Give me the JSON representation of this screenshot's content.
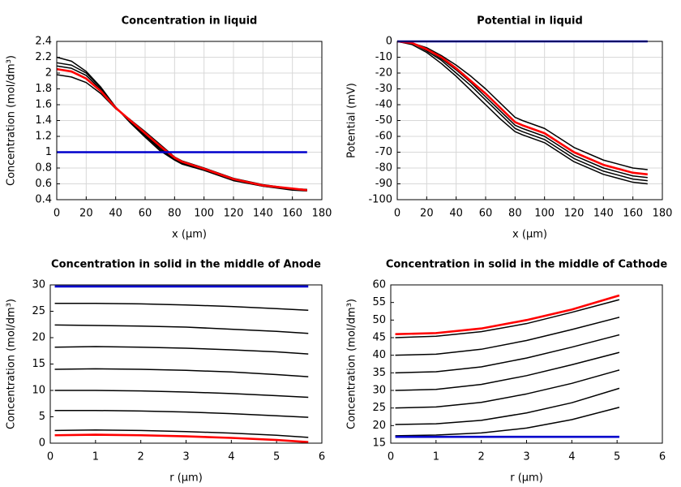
{
  "chart_data": [
    {
      "type": "line",
      "title": "Concentration in liquid",
      "xlabel": "x (μm)",
      "ylabel": "Concentration (mol/dm³)",
      "x": [
        0,
        10,
        20,
        30,
        40,
        50,
        60,
        70,
        80,
        85,
        100,
        120,
        140,
        160,
        170
      ],
      "xlim": [
        0,
        180
      ],
      "xticks": [
        0,
        20,
        40,
        60,
        80,
        100,
        120,
        140,
        160,
        180
      ],
      "ylim": [
        0.4,
        2.4
      ],
      "yticks": [
        0.4,
        0.6,
        0.8,
        1,
        1.2,
        1.4,
        1.6,
        1.8,
        2,
        2.2,
        2.4
      ],
      "grid": true,
      "series": [
        {
          "color": "#000000",
          "values": [
            2.2,
            2.15,
            2.02,
            1.82,
            1.57,
            1.37,
            1.19,
            1.02,
            0.9,
            0.85,
            0.77,
            0.64,
            0.57,
            0.52,
            0.51
          ]
        },
        {
          "color": "#000000",
          "values": [
            2.13,
            2.1,
            2.0,
            1.81,
            1.57,
            1.38,
            1.21,
            1.04,
            0.91,
            0.86,
            0.78,
            0.65,
            0.57,
            0.53,
            0.52
          ]
        },
        {
          "color": "#000000",
          "values": [
            2.09,
            2.06,
            1.97,
            1.79,
            1.56,
            1.39,
            1.22,
            1.06,
            0.92,
            0.87,
            0.79,
            0.66,
            0.58,
            0.53,
            0.52
          ]
        },
        {
          "color": "#000000",
          "values": [
            1.98,
            1.95,
            1.88,
            1.74,
            1.55,
            1.41,
            1.26,
            1.1,
            0.94,
            0.89,
            0.8,
            0.67,
            0.59,
            0.54,
            0.53
          ]
        },
        {
          "color": "#ff0000",
          "values": [
            2.05,
            2.02,
            1.93,
            1.77,
            1.56,
            1.4,
            1.24,
            1.08,
            0.93,
            0.88,
            0.79,
            0.66,
            0.58,
            0.54,
            0.52
          ]
        },
        {
          "color": "#0000cc",
          "values": [
            1,
            1,
            1,
            1,
            1,
            1,
            1,
            1,
            1,
            1,
            1,
            1,
            1,
            1,
            1
          ]
        }
      ]
    },
    {
      "type": "line",
      "title": "Potential in liquid",
      "xlabel": "x (μm)",
      "ylabel": "Potential (mV)",
      "x": [
        0,
        10,
        20,
        30,
        40,
        50,
        60,
        70,
        80,
        85,
        100,
        120,
        140,
        160,
        170
      ],
      "xlim": [
        0,
        180
      ],
      "xticks": [
        0,
        20,
        40,
        60,
        80,
        100,
        120,
        140,
        160,
        180
      ],
      "ylim": [
        -100,
        0
      ],
      "yticks": [
        -100,
        -90,
        -80,
        -70,
        -60,
        -50,
        -40,
        -30,
        -20,
        -10,
        0
      ],
      "grid": true,
      "series": [
        {
          "color": "#000000",
          "values": [
            0,
            -1,
            -4,
            -9,
            -15,
            -22,
            -30,
            -39,
            -48,
            -50,
            -55,
            -67,
            -75,
            -80,
            -81
          ]
        },
        {
          "color": "#000000",
          "values": [
            0,
            -1,
            -5,
            -11,
            -18,
            -26,
            -35,
            -44,
            -53,
            -55,
            -60,
            -72,
            -80,
            -85,
            -86
          ]
        },
        {
          "color": "#000000",
          "values": [
            0,
            -1,
            -6,
            -12,
            -20,
            -28,
            -37,
            -46,
            -55,
            -57,
            -62,
            -74,
            -82,
            -87,
            -88
          ]
        },
        {
          "color": "#000000",
          "values": [
            0,
            -2,
            -7,
            -14,
            -22,
            -31,
            -40,
            -49,
            -57,
            -59,
            -64,
            -76,
            -84,
            -89,
            -90
          ]
        },
        {
          "color": "#ff0000",
          "values": [
            0,
            -1,
            -5,
            -10,
            -17,
            -25,
            -33,
            -42,
            -51,
            -53,
            -58,
            -70,
            -78,
            -83,
            -84
          ]
        },
        {
          "color": "#0000cc",
          "values": [
            0,
            0,
            0,
            0,
            0,
            0,
            0,
            0,
            0,
            0,
            0,
            0,
            0,
            0,
            0
          ]
        }
      ]
    },
    {
      "type": "line",
      "title": "Concentration in solid in the middle of Anode",
      "xlabel": "r (μm)",
      "ylabel": "Concentration (mol/dm³)",
      "x": [
        0.1,
        1,
        2,
        3,
        4,
        5,
        5.7
      ],
      "xlim": [
        0,
        6
      ],
      "xticks": [
        0,
        1,
        2,
        3,
        4,
        5,
        6
      ],
      "ylim": [
        0,
        30
      ],
      "yticks": [
        0,
        5,
        10,
        15,
        20,
        25,
        30
      ],
      "grid": false,
      "series": [
        {
          "color": "#000000",
          "values": [
            26.5,
            26.5,
            26.4,
            26.2,
            25.9,
            25.5,
            25.2
          ]
        },
        {
          "color": "#000000",
          "values": [
            22.4,
            22.3,
            22.2,
            22.0,
            21.6,
            21.2,
            20.8
          ]
        },
        {
          "color": "#000000",
          "values": [
            18.2,
            18.3,
            18.2,
            18.0,
            17.7,
            17.3,
            16.9
          ]
        },
        {
          "color": "#000000",
          "values": [
            14.0,
            14.1,
            14.0,
            13.8,
            13.5,
            13.0,
            12.6
          ]
        },
        {
          "color": "#000000",
          "values": [
            10.0,
            10.0,
            9.9,
            9.7,
            9.4,
            9.0,
            8.7
          ]
        },
        {
          "color": "#000000",
          "values": [
            6.2,
            6.2,
            6.1,
            5.9,
            5.6,
            5.2,
            4.9
          ]
        },
        {
          "color": "#000000",
          "values": [
            2.4,
            2.5,
            2.4,
            2.2,
            1.9,
            1.5,
            1.1
          ]
        },
        {
          "color": "#ff0000",
          "values": [
            1.5,
            1.6,
            1.5,
            1.3,
            1.0,
            0.6,
            0.2
          ]
        },
        {
          "color": "#0000cc",
          "values": [
            29.7,
            29.7,
            29.7,
            29.7,
            29.7,
            29.7,
            29.7
          ]
        }
      ]
    },
    {
      "type": "line",
      "title": "Concentration in solid in the middle of Cathode",
      "xlabel": "r (μm)",
      "ylabel": "Concentration (mol/dm³)",
      "x": [
        0.1,
        1,
        2,
        3,
        4,
        5.05
      ],
      "xlim": [
        0,
        6
      ],
      "xticks": [
        0,
        1,
        2,
        3,
        4,
        5,
        6
      ],
      "ylim": [
        15,
        60
      ],
      "yticks": [
        15,
        20,
        25,
        30,
        35,
        40,
        45,
        50,
        55,
        60
      ],
      "grid": false,
      "series": [
        {
          "color": "#000000",
          "values": [
            45,
            45.4,
            46.7,
            49,
            52.2,
            55.8
          ]
        },
        {
          "color": "#000000",
          "values": [
            40,
            40.3,
            41.7,
            44.2,
            47.3,
            50.8
          ]
        },
        {
          "color": "#000000",
          "values": [
            35,
            35.3,
            36.7,
            39.2,
            42.3,
            45.8
          ]
        },
        {
          "color": "#000000",
          "values": [
            30,
            30.3,
            31.7,
            34.2,
            37.3,
            40.8
          ]
        },
        {
          "color": "#000000",
          "values": [
            25,
            25.3,
            26.6,
            29,
            32,
            35.8
          ]
        },
        {
          "color": "#000000",
          "values": [
            20.3,
            20.5,
            21.5,
            23.6,
            26.5,
            30.6
          ]
        },
        {
          "color": "#000000",
          "values": [
            17.1,
            17.3,
            17.9,
            19.3,
            21.7,
            25.2
          ]
        },
        {
          "color": "#ff0000",
          "values": [
            46,
            46.3,
            47.6,
            50,
            53,
            57
          ]
        },
        {
          "color": "#0000cc",
          "values": [
            16.8,
            16.8,
            16.8,
            16.8,
            16.8,
            16.8
          ]
        }
      ]
    }
  ]
}
